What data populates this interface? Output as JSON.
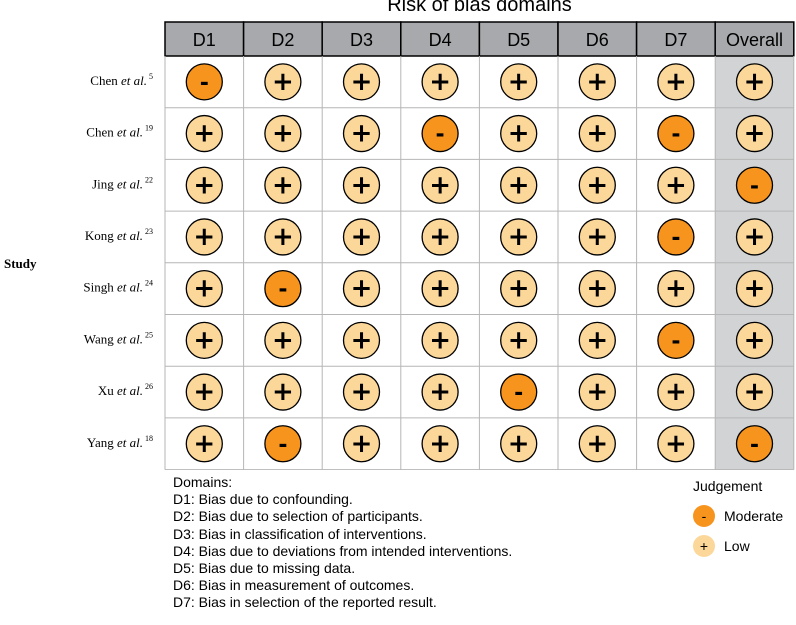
{
  "chart_data": {
    "type": "table",
    "title": "Risk of bias domains",
    "row_axis_label": "Study",
    "domains": [
      "D1",
      "D2",
      "D3",
      "D4",
      "D5",
      "D6",
      "D7",
      "Overall"
    ],
    "studies": [
      {
        "name": "Chen",
        "suffix": "et al.",
        "ref": "5",
        "judgements": [
          "Moderate",
          "Low",
          "Low",
          "Low",
          "Low",
          "Low",
          "Low",
          "Low"
        ]
      },
      {
        "name": "Chen",
        "suffix": "et al.",
        "ref": "19",
        "judgements": [
          "Low",
          "Low",
          "Low",
          "Moderate",
          "Low",
          "Low",
          "Moderate",
          "Low"
        ]
      },
      {
        "name": "Jing",
        "suffix": "et al.",
        "ref": "22",
        "judgements": [
          "Low",
          "Low",
          "Low",
          "Low",
          "Low",
          "Low",
          "Low",
          "Moderate"
        ]
      },
      {
        "name": "Kong",
        "suffix": "et al.",
        "ref": "23",
        "judgements": [
          "Low",
          "Low",
          "Low",
          "Low",
          "Low",
          "Low",
          "Moderate",
          "Low"
        ]
      },
      {
        "name": "Singh",
        "suffix": "et al.",
        "ref": "24",
        "judgements": [
          "Low",
          "Moderate",
          "Low",
          "Low",
          "Low",
          "Low",
          "Low",
          "Low"
        ]
      },
      {
        "name": "Wang",
        "suffix": "et al.",
        "ref": "25",
        "judgements": [
          "Low",
          "Low",
          "Low",
          "Low",
          "Low",
          "Low",
          "Moderate",
          "Low"
        ]
      },
      {
        "name": "Xu",
        "suffix": "et al.",
        "ref": "26",
        "judgements": [
          "Low",
          "Low",
          "Low",
          "Low",
          "Moderate",
          "Low",
          "Low",
          "Low"
        ]
      },
      {
        "name": "Yang",
        "suffix": "et al.",
        "ref": "18",
        "judgements": [
          "Low",
          "Moderate",
          "Low",
          "Low",
          "Low",
          "Low",
          "Low",
          "Moderate"
        ]
      }
    ],
    "symbols": {
      "Moderate": "-",
      "Low": "+"
    },
    "colors": {
      "Moderate": "#f7941d",
      "Low": "#fcd79a",
      "header_bg": "#a7a9ac",
      "overall_bg": "#d1d3d4",
      "grid": "#b6b6b6"
    },
    "domains_legend": {
      "heading": "Domains:",
      "items": [
        "D1: Bias due to confounding.",
        "D2: Bias due to selection of participants.",
        "D3: Bias in classification of interventions.",
        "D4: Bias due to deviations from intended interventions.",
        "D5: Bias due to missing data.",
        "D6: Bias in measurement of outcomes.",
        "D7: Bias in selection of the reported result."
      ]
    },
    "judgement_legend": {
      "title": "Judgement",
      "items": [
        {
          "label": "Moderate",
          "symbol": "-"
        },
        {
          "label": "Low",
          "symbol": "+"
        }
      ]
    }
  }
}
